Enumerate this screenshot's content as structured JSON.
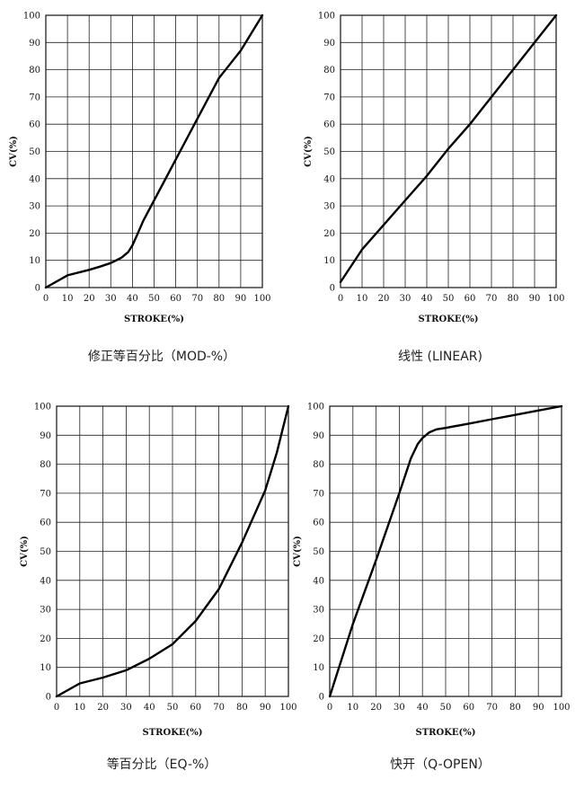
{
  "chart_data": [
    {
      "type": "line",
      "caption": "修正等百分比（MOD-%）",
      "xlabel": "STROKE(%)",
      "ylabel": "CV(%)",
      "xlim": [
        0,
        100
      ],
      "ylim": [
        0,
        100
      ],
      "xticks": [
        "0",
        "10",
        "20",
        "30",
        "40",
        "50",
        "60",
        "70",
        "80",
        "90",
        "100"
      ],
      "yticks": [
        "0",
        "10",
        "20",
        "30",
        "40",
        "50",
        "60",
        "70",
        "80",
        "90",
        "100"
      ],
      "grid": true,
      "series": [
        {
          "x": [
            0,
            10,
            15,
            20,
            25,
            30,
            35,
            38,
            40,
            42,
            45,
            50,
            60,
            70,
            80,
            90,
            100
          ],
          "y": [
            0,
            4.5,
            5.5,
            6.5,
            7.7,
            9,
            11,
            13,
            15.5,
            19,
            24.5,
            32,
            47,
            62,
            77,
            87,
            100
          ]
        }
      ]
    },
    {
      "type": "line",
      "caption": "线性 (LINEAR)",
      "xlabel": "STROKE(%)",
      "ylabel": "CV(%)",
      "xlim": [
        0,
        100
      ],
      "ylim": [
        0,
        100
      ],
      "xticks": [
        "0",
        "10",
        "20",
        "30",
        "40",
        "50",
        "60",
        "70",
        "80",
        "90",
        "100"
      ],
      "yticks": [
        "0",
        "10",
        "20",
        "30",
        "40",
        "50",
        "60",
        "70",
        "80",
        "90",
        "100"
      ],
      "grid": true,
      "series": [
        {
          "x": [
            0,
            10,
            20,
            30,
            40,
            50,
            60,
            70,
            80,
            90,
            100
          ],
          "y": [
            2,
            14,
            23,
            32,
            41,
            51,
            60,
            70,
            80,
            90,
            100
          ]
        }
      ]
    },
    {
      "type": "line",
      "caption": "等百分比（EQ-%）",
      "xlabel": "STROKE(%)",
      "ylabel": "CV(%)",
      "xlim": [
        0,
        100
      ],
      "ylim": [
        0,
        100
      ],
      "xticks": [
        "0",
        "10",
        "20",
        "30",
        "40",
        "50",
        "60",
        "70",
        "80",
        "90",
        "100"
      ],
      "yticks": [
        "0",
        "10",
        "20",
        "30",
        "40",
        "50",
        "60",
        "70",
        "80",
        "90",
        "100"
      ],
      "grid": true,
      "series": [
        {
          "x": [
            0,
            10,
            20,
            30,
            40,
            50,
            60,
            70,
            80,
            85,
            90,
            95,
            100
          ],
          "y": [
            0,
            4.5,
            6.5,
            9,
            13,
            18,
            26,
            37,
            53,
            62,
            71,
            84,
            100
          ]
        }
      ]
    },
    {
      "type": "line",
      "caption": "快开（Q-OPEN）",
      "xlabel": "STROKE(%)",
      "ylabel": "CV(%)",
      "xlim": [
        0,
        100
      ],
      "ylim": [
        0,
        100
      ],
      "xticks": [
        "0",
        "10",
        "20",
        "30",
        "40",
        "50",
        "60",
        "70",
        "80",
        "90",
        "100"
      ],
      "yticks": [
        "0",
        "10",
        "20",
        "30",
        "40",
        "50",
        "60",
        "70",
        "80",
        "90",
        "100"
      ],
      "grid": true,
      "series": [
        {
          "x": [
            0,
            10,
            20,
            30,
            35,
            38,
            40,
            43,
            46,
            50,
            60,
            70,
            80,
            90,
            100
          ],
          "y": [
            0,
            25,
            47,
            70,
            82,
            87,
            89,
            91,
            92,
            92.5,
            94,
            95.5,
            97,
            98.5,
            100
          ]
        }
      ]
    }
  ]
}
